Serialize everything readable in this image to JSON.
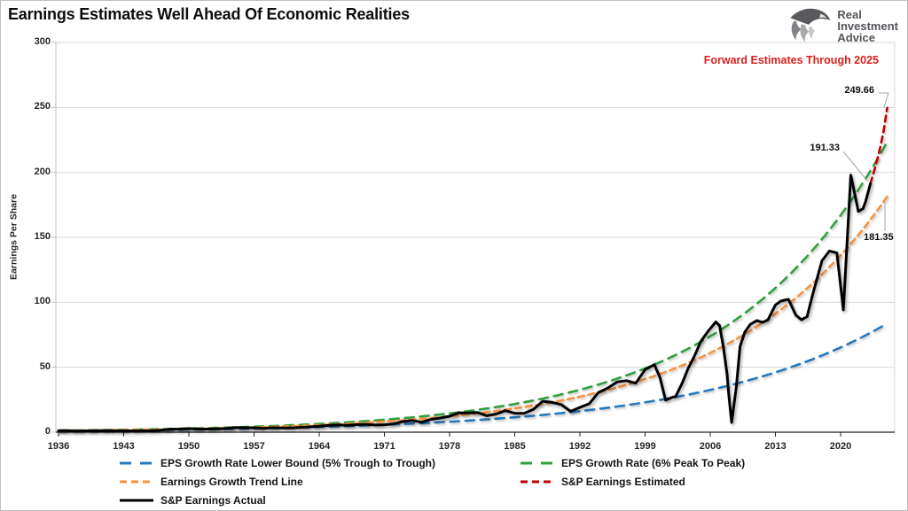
{
  "header": {
    "title": "Earnings Estimates Well Ahead Of Economic Realities",
    "logo": {
      "line1": "Real",
      "line2": "Investment",
      "line3": "Advice"
    }
  },
  "annotations": {
    "forward_note": "Forward Estimates Through 2025",
    "est_value": "249.66",
    "actual_value": "191.33",
    "trend_value": "181.35"
  },
  "colors": {
    "blue": "#2279BF",
    "green": "#2FA03C",
    "orange": "#F7913C",
    "red_line": "#C00000",
    "red_text": "#D8201F",
    "grid": "#D9D9D9",
    "axis": "#BFBFBF",
    "baseline": "#1F1F1F",
    "callout_line": "#A6A6A6",
    "logo_gray": "#54555A"
  },
  "chart_data": {
    "type": "line",
    "title": "Earnings Estimates Well Ahead Of Economic Realities",
    "xlabel": "",
    "ylabel": "Earnings Per Share",
    "ylim": [
      0,
      300
    ],
    "xlim": [
      1936,
      2026
    ],
    "yticks": [
      0,
      50,
      100,
      150,
      200,
      250,
      300
    ],
    "xticks": [
      1936,
      1943,
      1950,
      1957,
      1964,
      1971,
      1978,
      1985,
      1992,
      1999,
      2006,
      2013,
      2020
    ],
    "grid": "horizontal",
    "legend_position": "bottom",
    "annotation_note": "Forward Estimates Through 2025",
    "series": [
      {
        "name": "EPS Growth Rate Lower Bound (5% Trough to Trough)",
        "color": "#2279BF",
        "style": "long-dash",
        "model": "exponential",
        "start_year": 1936,
        "end_year": 2025,
        "start_value": 1.0,
        "growth_rate_pct": 5.1,
        "end_value": 83.7
      },
      {
        "name": "EPS Growth Rate (6% Peak To Peak)",
        "color": "#2FA03C",
        "style": "long-dash",
        "model": "exponential",
        "start_year": 1936,
        "end_year": 2025,
        "start_value": 1.25,
        "growth_rate_pct": 6.0,
        "end_value": 223.4
      },
      {
        "name": "Earnings Growth Trend Line",
        "color": "#F7913C",
        "style": "dash",
        "model": "exponential",
        "start_year": 1936,
        "end_year": 2025,
        "start_value": 1.1035,
        "growth_rate_pct": 5.9,
        "end_value": 181.35
      },
      {
        "name": "S&P Earnings Estimated",
        "color": "#C00000",
        "style": "dash",
        "model": "points",
        "points": [
          [
            2023.2,
            191.33
          ],
          [
            2023.55,
            200
          ],
          [
            2023.9,
            209
          ],
          [
            2024.25,
            219
          ],
          [
            2024.6,
            231
          ],
          [
            2024.8,
            240
          ],
          [
            2025.0,
            249.66
          ]
        ]
      },
      {
        "name": "S&P Earnings Actual",
        "color": "#000000",
        "style": "solid",
        "model": "points",
        "points": [
          [
            1936,
            1.1
          ],
          [
            1937,
            1.2
          ],
          [
            1938,
            0.8
          ],
          [
            1939,
            1.0
          ],
          [
            1940,
            1.1
          ],
          [
            1941,
            1.2
          ],
          [
            1942,
            1.0
          ],
          [
            1943,
            1.0
          ],
          [
            1944,
            1.0
          ],
          [
            1945,
            1.0
          ],
          [
            1946,
            1.1
          ],
          [
            1947,
            1.6
          ],
          [
            1948,
            2.3
          ],
          [
            1949,
            2.4
          ],
          [
            1950,
            2.8
          ],
          [
            1951,
            2.4
          ],
          [
            1952,
            2.4
          ],
          [
            1953,
            2.5
          ],
          [
            1954,
            2.8
          ],
          [
            1955,
            3.6
          ],
          [
            1956,
            3.4
          ],
          [
            1957,
            3.4
          ],
          [
            1958,
            2.9
          ],
          [
            1959,
            3.4
          ],
          [
            1960,
            3.3
          ],
          [
            1961,
            3.2
          ],
          [
            1962,
            3.7
          ],
          [
            1963,
            4.1
          ],
          [
            1964,
            4.6
          ],
          [
            1965,
            5.2
          ],
          [
            1966,
            5.6
          ],
          [
            1967,
            5.3
          ],
          [
            1968,
            5.8
          ],
          [
            1969,
            6.1
          ],
          [
            1970,
            5.5
          ],
          [
            1971,
            5.7
          ],
          [
            1972,
            6.4
          ],
          [
            1973,
            8.2
          ],
          [
            1974,
            9.0
          ],
          [
            1975,
            7.7
          ],
          [
            1976,
            9.9
          ],
          [
            1977,
            10.9
          ],
          [
            1978,
            12.3
          ],
          [
            1979,
            14.9
          ],
          [
            1980,
            14.8
          ],
          [
            1981,
            15.2
          ],
          [
            1982,
            12.7
          ],
          [
            1983,
            14.0
          ],
          [
            1984,
            16.6
          ],
          [
            1985,
            14.6
          ],
          [
            1986,
            14.5
          ],
          [
            1987,
            17.5
          ],
          [
            1988,
            23.8
          ],
          [
            1989,
            23.0
          ],
          [
            1990,
            21.3
          ],
          [
            1991,
            16.0
          ],
          [
            1992,
            19.1
          ],
          [
            1993,
            21.9
          ],
          [
            1994,
            30.6
          ],
          [
            1995,
            34.0
          ],
          [
            1996,
            38.7
          ],
          [
            1997,
            39.7
          ],
          [
            1998,
            37.7
          ],
          [
            1999,
            48.2
          ],
          [
            2000,
            52.0
          ],
          [
            2000.6,
            42.0
          ],
          [
            2001.2,
            24.7
          ],
          [
            2001.8,
            26.5
          ],
          [
            2002.3,
            27.6
          ],
          [
            2003,
            38.0
          ],
          [
            2003.6,
            48.7
          ],
          [
            2004.3,
            58.5
          ],
          [
            2005,
            70.0
          ],
          [
            2005.8,
            78.0
          ],
          [
            2006.6,
            84.9
          ],
          [
            2007.0,
            82.0
          ],
          [
            2007.4,
            66.0
          ],
          [
            2007.8,
            45.0
          ],
          [
            2008.0,
            28.0
          ],
          [
            2008.3,
            7.5
          ],
          [
            2008.8,
            35.0
          ],
          [
            2009.2,
            66.0
          ],
          [
            2009.7,
            77.0
          ],
          [
            2010.3,
            83.0
          ],
          [
            2011.0,
            86.0
          ],
          [
            2011.6,
            84.5
          ],
          [
            2012.2,
            86.5
          ],
          [
            2013.0,
            98.0
          ],
          [
            2013.6,
            101.0
          ],
          [
            2014.4,
            102.3
          ],
          [
            2015.2,
            90.0
          ],
          [
            2015.8,
            86.5
          ],
          [
            2016.4,
            89.0
          ],
          [
            2017.0,
            106.0
          ],
          [
            2018.0,
            132.0
          ],
          [
            2018.8,
            139.5
          ],
          [
            2019.6,
            138.0
          ],
          [
            2020.3,
            94.1
          ],
          [
            2021.1,
            197.9
          ],
          [
            2021.9,
            170.0
          ],
          [
            2022.4,
            172.0
          ],
          [
            2022.7,
            178.0
          ],
          [
            2023.2,
            191.33
          ]
        ],
        "callouts": {
          "last_actual": 191.33,
          "trend_end": 181.35,
          "estimate_end": 249.66
        }
      }
    ]
  }
}
